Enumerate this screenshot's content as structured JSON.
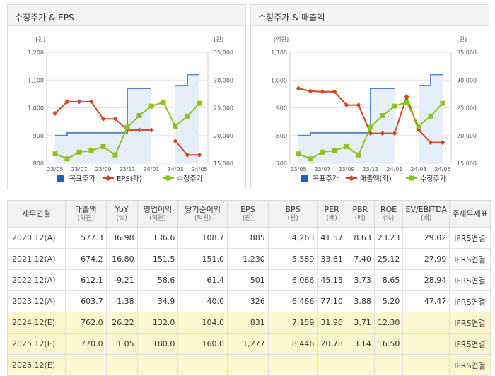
{
  "colors": {
    "target": "#1f5fbf",
    "series2": "#d4471f",
    "price": "#8cc320",
    "band": "#e6eef9",
    "bandLine": "#5b86cf"
  },
  "charts": [
    {
      "title": "수정주가 & EPS",
      "left_unit": "[원]",
      "right_unit": "[원]",
      "left_ticks": [
        "1,200",
        "1,100",
        "1,000",
        "900",
        "800"
      ],
      "right_ticks": [
        "35,000",
        "30,000",
        "25,000",
        "20,000",
        "15,000"
      ],
      "xticks": [
        "23/05",
        "23/07",
        "23/09",
        "23/11",
        "24/01",
        "24/03",
        "24/05"
      ],
      "legend": [
        "목표주가",
        "EPS(좌)",
        "수정주가"
      ]
    },
    {
      "title": "수정주가 & 매출액",
      "left_unit": "[억원]",
      "right_unit": "[원]",
      "left_ticks": [
        "1,100",
        "1,000",
        "900",
        "800",
        "700"
      ],
      "right_ticks": [
        "35,000",
        "30,000",
        "25,000",
        "20,000",
        "15,000"
      ],
      "xticks": [
        "23/05",
        "23/07",
        "23/09",
        "23/11",
        "24/01",
        "24/03",
        "24/05"
      ],
      "legend": [
        "목표주가",
        "매출액(좌)",
        "수정주가"
      ]
    }
  ],
  "chart_data": [
    {
      "type": "line",
      "title": "수정주가 & EPS",
      "x": [
        "23/05",
        "23/06",
        "23/07",
        "23/08",
        "23/09",
        "23/10",
        "23/11",
        "23/12",
        "24/01",
        "24/02",
        "24/03",
        "24/04",
        "24/05"
      ],
      "left_range": [
        800,
        1200
      ],
      "right_range": [
        15000,
        35000
      ],
      "series": [
        {
          "name": "목표주가",
          "axis": "right",
          "values": [
            20000,
            20500,
            20500,
            20500,
            20500,
            20500,
            28500,
            28500,
            28500,
            null,
            29000,
            31000,
            31000
          ]
        },
        {
          "name": "EPS(좌)",
          "axis": "left",
          "values": [
            980,
            1022,
            1022,
            1022,
            960,
            960,
            920,
            920,
            920,
            null,
            880,
            830,
            830
          ]
        },
        {
          "name": "수정주가",
          "axis": "right",
          "values": [
            16700,
            15800,
            17000,
            17300,
            18000,
            16500,
            21500,
            23600,
            25300,
            26000,
            21700,
            23500,
            25800
          ]
        }
      ]
    },
    {
      "type": "line",
      "title": "수정주가 & 매출액",
      "x": [
        "23/05",
        "23/06",
        "23/07",
        "23/08",
        "23/09",
        "23/10",
        "23/11",
        "23/12",
        "24/01",
        "24/02",
        "24/03",
        "24/04",
        "24/05"
      ],
      "left_range": [
        700,
        1100
      ],
      "right_range": [
        15000,
        35000
      ],
      "series": [
        {
          "name": "목표주가",
          "axis": "right",
          "values": [
            20000,
            20500,
            20500,
            20500,
            20500,
            20500,
            28500,
            28500,
            28500,
            null,
            29000,
            31000,
            31000
          ]
        },
        {
          "name": "매출액(좌)",
          "axis": "left",
          "values": [
            970,
            960,
            958,
            958,
            910,
            910,
            808,
            808,
            808,
            940,
            820,
            775,
            775
          ]
        },
        {
          "name": "수정주가",
          "axis": "right",
          "values": [
            16700,
            15800,
            17000,
            17300,
            18000,
            16500,
            21500,
            23600,
            25300,
            26000,
            21700,
            23500,
            25800
          ]
        }
      ]
    }
  ],
  "table": {
    "headers": [
      {
        "t": "재무연월",
        "s": ""
      },
      {
        "t": "매출액",
        "s": "(억원)"
      },
      {
        "t": "YoY",
        "s": "(%)"
      },
      {
        "t": "영업이익",
        "s": "(억원)"
      },
      {
        "t": "당기순이익",
        "s": "(억원)"
      },
      {
        "t": "EPS",
        "s": "(원)"
      },
      {
        "t": "BPS",
        "s": "(원)"
      },
      {
        "t": "PER",
        "s": "(배)"
      },
      {
        "t": "PBR",
        "s": "(배)"
      },
      {
        "t": "ROE",
        "s": "(%)"
      },
      {
        "t": "EV/EBITDA",
        "s": "(배)"
      },
      {
        "t": "주재무제표",
        "s": ""
      }
    ],
    "rows": [
      [
        "2020.12(A)",
        "577.3",
        "36.98",
        "136.6",
        "108.7",
        "885",
        "4,263",
        "41.57",
        "8.63",
        "23.23",
        "29.02",
        "IFRS연결"
      ],
      [
        "2021.12(A)",
        "674.2",
        "16.80",
        "151.5",
        "151.0",
        "1,230",
        "5,589",
        "33.61",
        "7.40",
        "25.12",
        "27.99",
        "IFRS연결"
      ],
      [
        "2022.12(A)",
        "612.1",
        "-9.21",
        "58.6",
        "61.4",
        "501",
        "6,066",
        "45.15",
        "3.73",
        "8.65",
        "28.94",
        "IFRS연결"
      ],
      [
        "2023.12(A)",
        "603.7",
        "-1.38",
        "34.9",
        "40.0",
        "326",
        "6,466",
        "77.10",
        "3.88",
        "5.20",
        "47.47",
        "IFRS연결"
      ],
      [
        "2024.12(E)",
        "762.0",
        "26.22",
        "132.0",
        "104.0",
        "831",
        "7,159",
        "31.96",
        "3.71",
        "12.30",
        "",
        "IFRS연결"
      ],
      [
        "2025.12(E)",
        "770.0",
        "1.05",
        "180.0",
        "160.0",
        "1,277",
        "8,446",
        "20.78",
        "3.14",
        "16.50",
        "",
        "IFRS연결"
      ],
      [
        "2026.12(E)",
        "",
        "",
        "",
        "",
        "",
        "",
        "",
        "",
        "",
        "",
        "IFRS연결"
      ]
    ],
    "estimate_from_row": 4
  }
}
